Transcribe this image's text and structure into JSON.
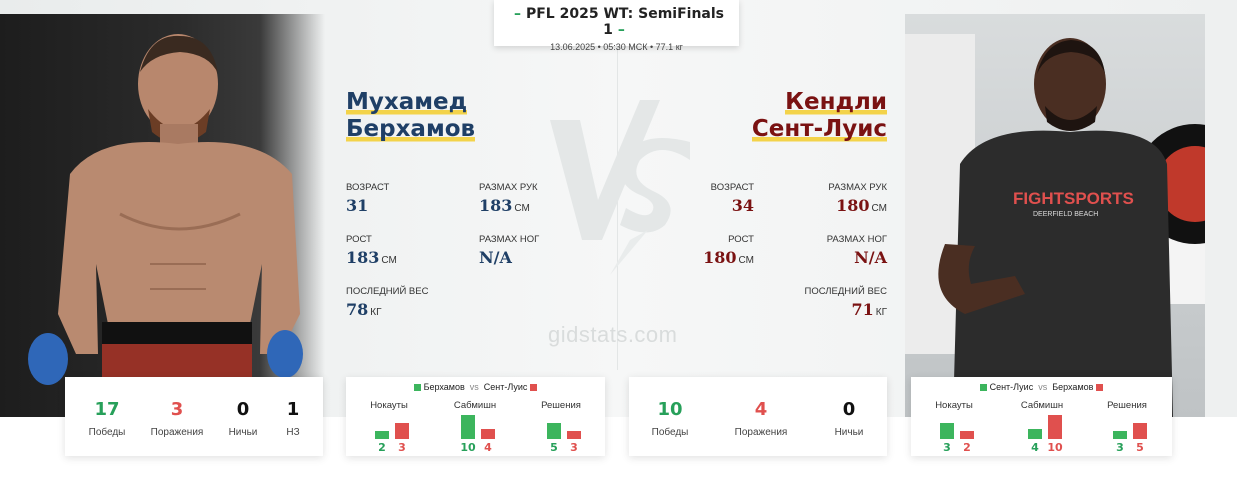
{
  "event": {
    "title": "PFL 2025 WT: SemiFinals 1",
    "dash": "–",
    "meta": "13.06.2025 • 05:30 МСК • 77.1 кг"
  },
  "watermark": "gidstats.com",
  "fighter1": {
    "first_name": "Мухамед",
    "last_name": "Берхамов",
    "stats": {
      "age_label": "ВОЗРАСТ",
      "age": "31",
      "reach_label": "РАЗМАХ РУК",
      "reach": "183",
      "reach_unit": "СМ",
      "height_label": "РОСТ",
      "height": "183",
      "height_unit": "СМ",
      "leg_label": "РАЗМАХ НОГ",
      "leg": "N/A",
      "weight_label": "ПОСЛЕДНИЙ ВЕС",
      "weight": "78",
      "weight_unit": "КГ"
    },
    "record": [
      {
        "value": "17",
        "label": "Победы"
      },
      {
        "value": "3",
        "label": "Поражения"
      },
      {
        "value": "0",
        "label": "Ничьи"
      },
      {
        "value": "1",
        "label": "НЗ"
      }
    ],
    "comparison": {
      "a_name": "Берхамов",
      "vs": "vs",
      "b_name": "Сент-Луис",
      "categories": [
        {
          "label": "Нокауты",
          "a": 2,
          "b": 3
        },
        {
          "label": "Сабмишн",
          "a": 10,
          "b": 4
        },
        {
          "label": "Решения",
          "a": 5,
          "b": 3
        }
      ]
    }
  },
  "fighter2": {
    "first_name": "Кендли",
    "last_name": "Сент-Луис",
    "stats": {
      "age_label": "ВОЗРАСТ",
      "age": "34",
      "reach_label": "РАЗМАХ РУК",
      "reach": "180",
      "reach_unit": "СМ",
      "height_label": "РОСТ",
      "height": "180",
      "height_unit": "СМ",
      "leg_label": "РАЗМАХ НОГ",
      "leg": "N/A",
      "weight_label": "ПОСЛЕДНИЙ ВЕС",
      "weight": "71",
      "weight_unit": "КГ"
    },
    "record": [
      {
        "value": "10",
        "label": "Победы"
      },
      {
        "value": "4",
        "label": "Поражения"
      },
      {
        "value": "0",
        "label": "Ничьи"
      }
    ],
    "comparison": {
      "a_name": "Сент-Луис",
      "vs": "vs",
      "b_name": "Берхамов",
      "categories": [
        {
          "label": "Нокауты",
          "a": 3,
          "b": 2
        },
        {
          "label": "Сабмишн",
          "a": 4,
          "b": 10
        },
        {
          "label": "Решения",
          "a": 3,
          "b": 5
        }
      ]
    }
  },
  "colors": {
    "win": "#27a05a",
    "loss": "#e0504e",
    "fighter1_name": "#1f3f66",
    "fighter2_name": "#7a1212",
    "name_highlight": "#f3d34a",
    "bar_a": "#3cb55d",
    "bar_b": "#e0504e"
  }
}
